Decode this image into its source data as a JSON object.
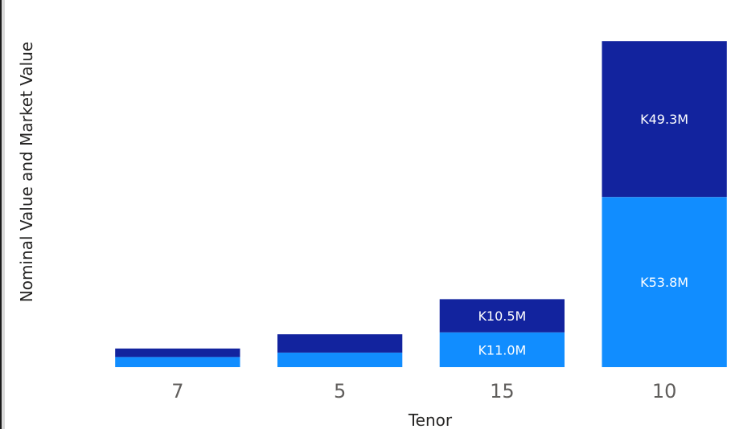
{
  "chart_data": {
    "type": "bar",
    "stacked": true,
    "xlabel": "Tenor",
    "ylabel": "Nominal Value and Market Value",
    "categories": [
      "7",
      "5",
      "15",
      "10"
    ],
    "series": [
      {
        "values": [
          3.2,
          4.6,
          11.0,
          53.8
        ],
        "labels": [
          "",
          "",
          "K11.0M",
          "K53.8M"
        ],
        "color": "#118dff"
      },
      {
        "values": [
          2.7,
          5.8,
          10.5,
          49.3
        ],
        "labels": [
          "",
          "",
          "K10.5M",
          "K49.3M"
        ],
        "color": "#12239e"
      }
    ],
    "ylim": [
      0,
      109
    ],
    "grid": false,
    "legend": "none"
  }
}
